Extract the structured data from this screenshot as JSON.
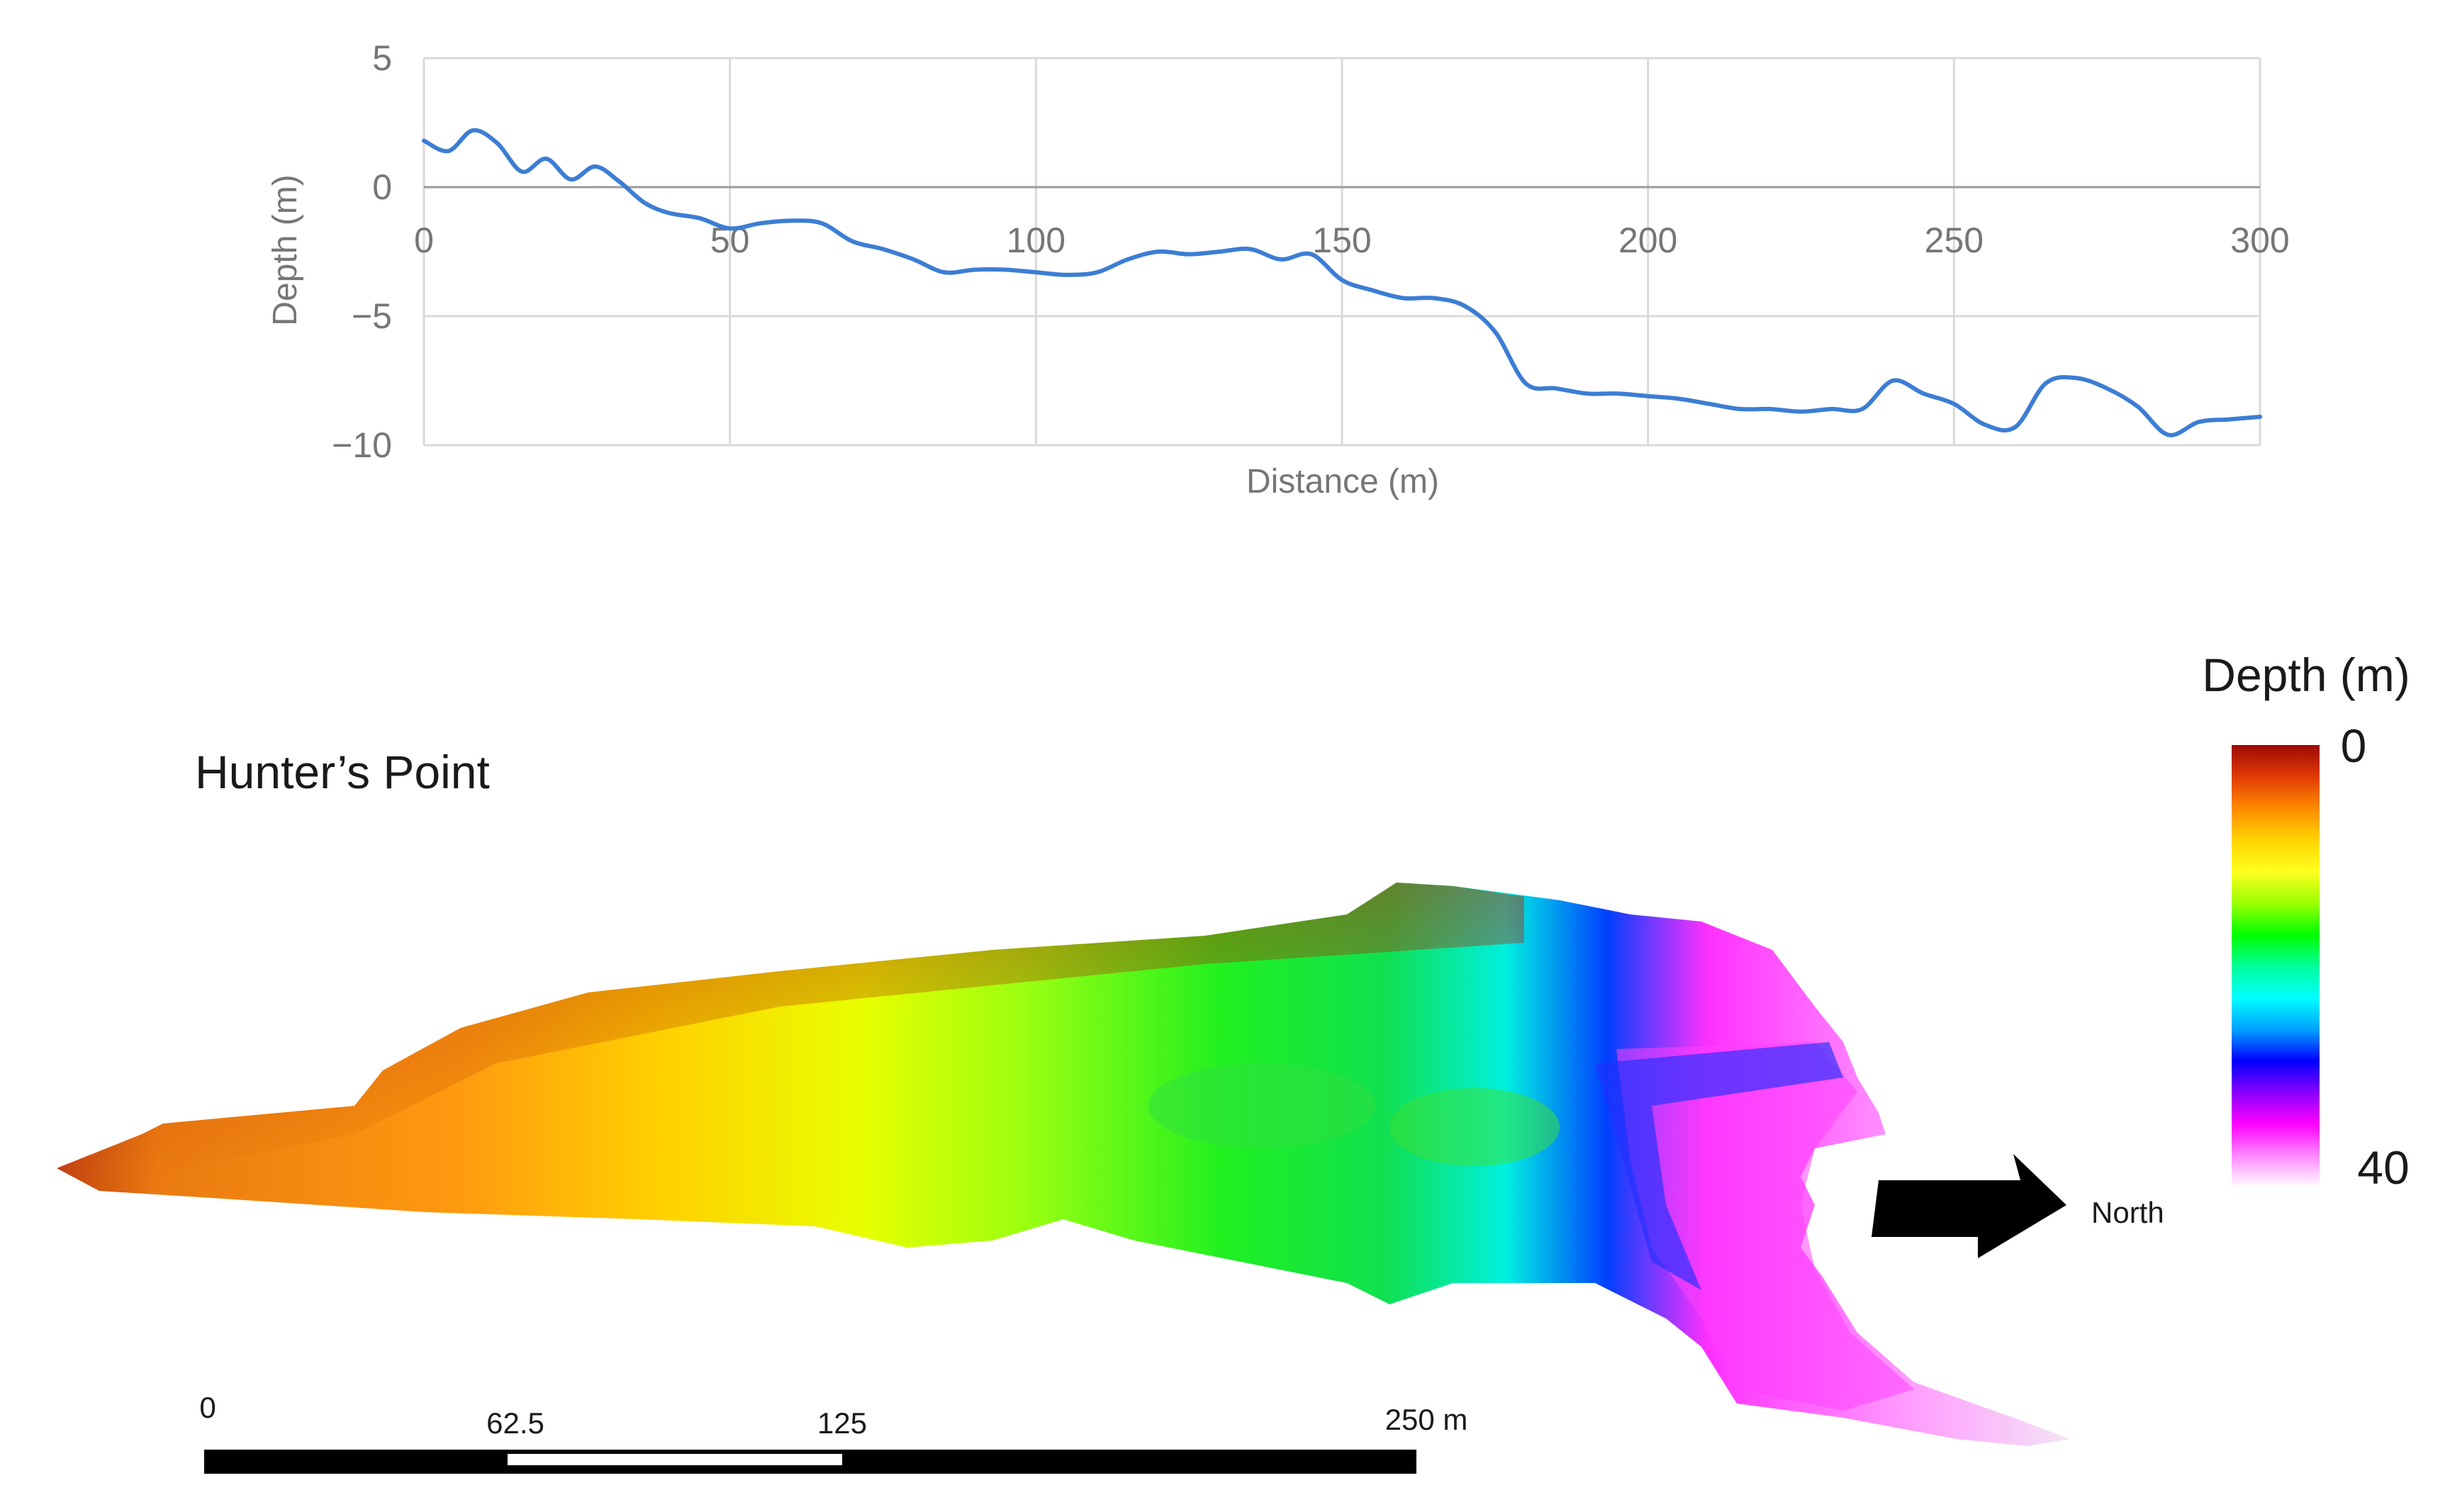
{
  "profile_chart": {
    "chart_data": {
      "type": "line",
      "xlabel": "Distance (m)",
      "ylabel": "Depth (m)",
      "xlim": [
        0,
        300
      ],
      "ylim": [
        -10,
        5
      ],
      "x_ticks": [
        0,
        50,
        100,
        150,
        200,
        250,
        300
      ],
      "y_ticks": [
        5,
        0,
        -5,
        -10
      ],
      "x_tick_labels": [
        "0",
        "50",
        "100",
        "150",
        "200",
        "250",
        "300"
      ],
      "y_tick_labels": [
        "5",
        "0",
        "−5",
        "−10"
      ],
      "grid": true,
      "series": [
        {
          "x": [
            0,
            4,
            8,
            12,
            16,
            20,
            24,
            28,
            32,
            36,
            40,
            45,
            50,
            55,
            60,
            65,
            70,
            75,
            80,
            85,
            90,
            95,
            100,
            105,
            110,
            115,
            120,
            125,
            130,
            135,
            140,
            145,
            150,
            155,
            160,
            165,
            170,
            175,
            180,
            185,
            190,
            195,
            200,
            205,
            210,
            215,
            220,
            225,
            230,
            235,
            240,
            245,
            250,
            255,
            260,
            265,
            270,
            275,
            280,
            285,
            290,
            295,
            300
          ],
          "y": [
            1.8,
            1.4,
            2.2,
            1.7,
            0.6,
            1.1,
            0.3,
            0.8,
            0.2,
            -0.6,
            -1.0,
            -1.2,
            -1.6,
            -1.4,
            -1.3,
            -1.4,
            -2.1,
            -2.4,
            -2.8,
            -3.3,
            -3.2,
            -3.2,
            -3.3,
            -3.4,
            -3.3,
            -2.8,
            -2.5,
            -2.6,
            -2.5,
            -2.4,
            -2.8,
            -2.6,
            -3.6,
            -4.0,
            -4.3,
            -4.3,
            -4.6,
            -5.6,
            -7.6,
            -7.8,
            -8.0,
            -8.0,
            -8.1,
            -8.2,
            -8.4,
            -8.6,
            -8.6,
            -8.7,
            -8.6,
            -8.6,
            -7.5,
            -8.0,
            -8.4,
            -9.2,
            -9.3,
            -7.6,
            -7.4,
            -7.8,
            -8.5,
            -9.6,
            -9.1,
            -9.0,
            -8.9
          ]
        }
      ],
      "line_color": "#3c7dd4",
      "grid_color": "#d9d9d9"
    }
  },
  "map": {
    "title": "Hunter’s Point",
    "north_label": "North",
    "colorbar": {
      "title": "Depth (m)",
      "min_label": "0",
      "max_label": "40",
      "colors": [
        "#9b0a05",
        "#e03a05",
        "#ff8a00",
        "#ffd300",
        "#ffff20",
        "#9cff00",
        "#00ff00",
        "#00ff9a",
        "#00ffff",
        "#00a2ff",
        "#0000ff",
        "#8a00ff",
        "#ff00ff",
        "#ff8aff",
        "#ffffff"
      ]
    },
    "scale_bar": {
      "labels": [
        "0",
        "62.5",
        "125",
        "250 m"
      ]
    }
  }
}
